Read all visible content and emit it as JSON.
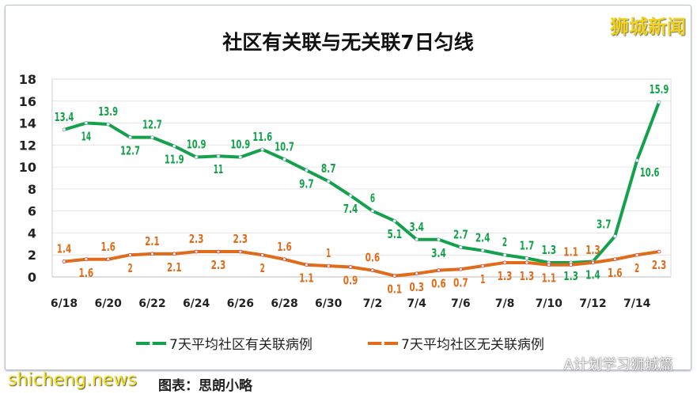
{
  "chart_data": {
    "type": "line",
    "title": "社区有关联与无关联7日匀线",
    "categories": [
      "6/18",
      "6/19",
      "6/20",
      "6/21",
      "6/22",
      "6/23",
      "6/24",
      "6/25",
      "6/26",
      "6/27",
      "6/28",
      "6/29",
      "6/30",
      "7/1",
      "7/2",
      "7/3",
      "7/4",
      "7/5",
      "7/6",
      "7/7",
      "7/8",
      "7/9",
      "7/10",
      "7/11",
      "7/12",
      "7/13",
      "7/14",
      "7/15"
    ],
    "tick_labels": [
      "6/18",
      "6/20",
      "6/22",
      "6/24",
      "6/26",
      "6/28",
      "6/30",
      "7/2",
      "7/4",
      "7/6",
      "7/8",
      "7/10",
      "7/12",
      "7/14"
    ],
    "yticks": [
      0,
      2,
      4,
      6,
      8,
      10,
      12,
      14,
      16,
      18
    ],
    "ylim": [
      0,
      18
    ],
    "grid": true,
    "legend": "bottom",
    "series": [
      {
        "name": "7天平均社区有关联病例",
        "color": "#13a24b",
        "values": [
          13.4,
          14,
          13.9,
          12.7,
          12.7,
          11.9,
          10.9,
          11,
          10.9,
          11.6,
          10.7,
          9.7,
          8.7,
          7.4,
          6,
          5.1,
          3.4,
          3.4,
          2.7,
          2.4,
          2,
          1.7,
          1.3,
          1.3,
          1.4,
          3.7,
          10.6,
          15.9
        ]
      },
      {
        "name": "7天平均社区无关联病例",
        "color": "#e06c1a",
        "values": [
          1.4,
          1.6,
          1.6,
          2,
          2.1,
          2.1,
          2.3,
          2.3,
          2.3,
          2,
          1.6,
          1.1,
          1,
          0.9,
          0.6,
          0.1,
          0.3,
          0.6,
          0.7,
          1,
          1.3,
          1.3,
          1.1,
          1.1,
          1.3,
          1.6,
          2,
          2.3
        ]
      }
    ]
  },
  "watermarks": {
    "top_right": "狮城新闻",
    "bottom_left": "shicheng.news",
    "bottom_right": "A计划学习狮城篇",
    "caption": "图表：思朗小略"
  }
}
